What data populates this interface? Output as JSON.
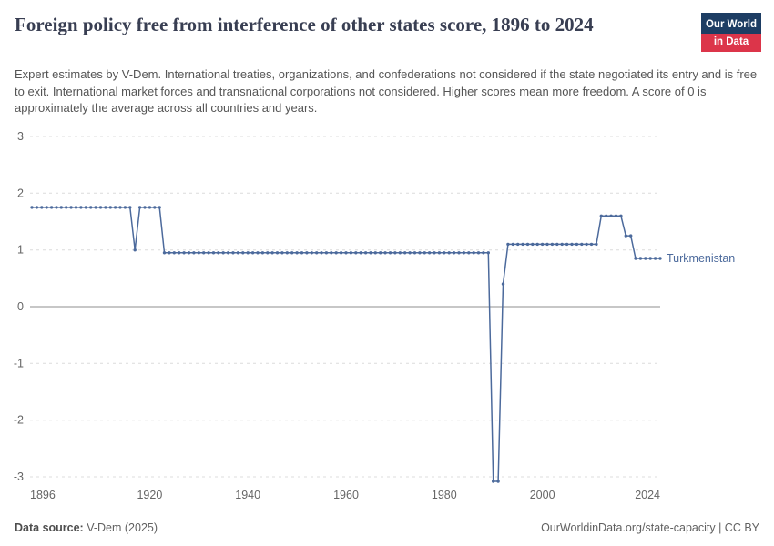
{
  "header": {
    "title": "Foreign policy free from interference of other states score, 1896 to 2024",
    "subtitle": "Expert estimates by V-Dem. International treaties, organizations, and confederations not considered if the state negotiated its entry and is free to exit. International market forces and transnational corporations not considered. Higher scores mean more freedom. A score of 0 is approximately the average across all countries and years.",
    "logo_line1": "Our World",
    "logo_line2": "in Data"
  },
  "colors": {
    "line": "#4c6a9c",
    "title": "#383e52",
    "subtitle": "#555555",
    "axis_label": "#666666",
    "gridline": "#dcdcdc",
    "zero_line": "#8f8f8f",
    "logo_bg": "#1d3d63",
    "logo_red": "#dc354a",
    "footer": "#616161"
  },
  "chart_data": {
    "type": "line",
    "title": "Foreign policy free from interference of other states score, 1896 to 2024",
    "xlabel": "",
    "ylabel": "",
    "xlim": [
      1896,
      2024
    ],
    "ylim": [
      -3,
      3
    ],
    "yticks": [
      3,
      2,
      1,
      0,
      -1,
      -2,
      -3
    ],
    "xticks": [
      1896,
      1920,
      1940,
      1960,
      1980,
      2000,
      2024
    ],
    "grid": "horizontal-dashed",
    "legend": "label-at-line-end",
    "series": [
      {
        "name": "Turkmenistan",
        "points": [
          [
            1896,
            1.75
          ],
          [
            1897,
            1.75
          ],
          [
            1898,
            1.75
          ],
          [
            1899,
            1.75
          ],
          [
            1900,
            1.75
          ],
          [
            1901,
            1.75
          ],
          [
            1902,
            1.75
          ],
          [
            1903,
            1.75
          ],
          [
            1904,
            1.75
          ],
          [
            1905,
            1.75
          ],
          [
            1906,
            1.75
          ],
          [
            1907,
            1.75
          ],
          [
            1908,
            1.75
          ],
          [
            1909,
            1.75
          ],
          [
            1910,
            1.75
          ],
          [
            1911,
            1.75
          ],
          [
            1912,
            1.75
          ],
          [
            1913,
            1.75
          ],
          [
            1914,
            1.75
          ],
          [
            1915,
            1.75
          ],
          [
            1916,
            1.75
          ],
          [
            1917,
            1.0
          ],
          [
            1918,
            1.75
          ],
          [
            1919,
            1.75
          ],
          [
            1920,
            1.75
          ],
          [
            1921,
            1.75
          ],
          [
            1922,
            1.75
          ],
          [
            1923,
            0.95
          ],
          [
            1924,
            0.95
          ],
          [
            1925,
            0.95
          ],
          [
            1926,
            0.95
          ],
          [
            1927,
            0.95
          ],
          [
            1928,
            0.95
          ],
          [
            1929,
            0.95
          ],
          [
            1930,
            0.95
          ],
          [
            1931,
            0.95
          ],
          [
            1932,
            0.95
          ],
          [
            1933,
            0.95
          ],
          [
            1934,
            0.95
          ],
          [
            1935,
            0.95
          ],
          [
            1936,
            0.95
          ],
          [
            1937,
            0.95
          ],
          [
            1938,
            0.95
          ],
          [
            1939,
            0.95
          ],
          [
            1940,
            0.95
          ],
          [
            1941,
            0.95
          ],
          [
            1942,
            0.95
          ],
          [
            1943,
            0.95
          ],
          [
            1944,
            0.95
          ],
          [
            1945,
            0.95
          ],
          [
            1946,
            0.95
          ],
          [
            1947,
            0.95
          ],
          [
            1948,
            0.95
          ],
          [
            1949,
            0.95
          ],
          [
            1950,
            0.95
          ],
          [
            1951,
            0.95
          ],
          [
            1952,
            0.95
          ],
          [
            1953,
            0.95
          ],
          [
            1954,
            0.95
          ],
          [
            1955,
            0.95
          ],
          [
            1956,
            0.95
          ],
          [
            1957,
            0.95
          ],
          [
            1958,
            0.95
          ],
          [
            1959,
            0.95
          ],
          [
            1960,
            0.95
          ],
          [
            1961,
            0.95
          ],
          [
            1962,
            0.95
          ],
          [
            1963,
            0.95
          ],
          [
            1964,
            0.95
          ],
          [
            1965,
            0.95
          ],
          [
            1966,
            0.95
          ],
          [
            1967,
            0.95
          ],
          [
            1968,
            0.95
          ],
          [
            1969,
            0.95
          ],
          [
            1970,
            0.95
          ],
          [
            1971,
            0.95
          ],
          [
            1972,
            0.95
          ],
          [
            1973,
            0.95
          ],
          [
            1974,
            0.95
          ],
          [
            1975,
            0.95
          ],
          [
            1976,
            0.95
          ],
          [
            1977,
            0.95
          ],
          [
            1978,
            0.95
          ],
          [
            1979,
            0.95
          ],
          [
            1980,
            0.95
          ],
          [
            1981,
            0.95
          ],
          [
            1982,
            0.95
          ],
          [
            1983,
            0.95
          ],
          [
            1984,
            0.95
          ],
          [
            1985,
            0.95
          ],
          [
            1986,
            0.95
          ],
          [
            1987,
            0.95
          ],
          [
            1988,
            0.95
          ],
          [
            1989,
            0.95
          ],
          [
            1990,
            -3.08
          ],
          [
            1991,
            -3.08
          ],
          [
            1992,
            0.4
          ],
          [
            1993,
            1.1
          ],
          [
            1994,
            1.1
          ],
          [
            1995,
            1.1
          ],
          [
            1996,
            1.1
          ],
          [
            1997,
            1.1
          ],
          [
            1998,
            1.1
          ],
          [
            1999,
            1.1
          ],
          [
            2000,
            1.1
          ],
          [
            2001,
            1.1
          ],
          [
            2002,
            1.1
          ],
          [
            2003,
            1.1
          ],
          [
            2004,
            1.1
          ],
          [
            2005,
            1.1
          ],
          [
            2006,
            1.1
          ],
          [
            2007,
            1.1
          ],
          [
            2008,
            1.1
          ],
          [
            2009,
            1.1
          ],
          [
            2010,
            1.1
          ],
          [
            2011,
            1.1
          ],
          [
            2012,
            1.6
          ],
          [
            2013,
            1.6
          ],
          [
            2014,
            1.6
          ],
          [
            2015,
            1.6
          ],
          [
            2016,
            1.6
          ],
          [
            2017,
            1.25
          ],
          [
            2018,
            1.25
          ],
          [
            2019,
            0.85
          ],
          [
            2020,
            0.85
          ],
          [
            2021,
            0.85
          ],
          [
            2022,
            0.85
          ],
          [
            2023,
            0.85
          ],
          [
            2024,
            0.85
          ]
        ]
      }
    ]
  },
  "footer": {
    "source_label": "Data source:",
    "source_value": "V-Dem (2025)",
    "credit": "OurWorldinData.org/state-capacity | CC BY"
  }
}
